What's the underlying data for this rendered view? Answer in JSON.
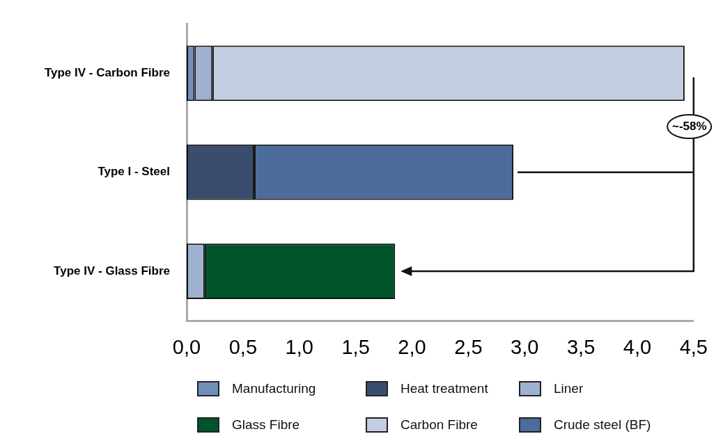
{
  "chart_data": {
    "type": "bar",
    "orientation": "horizontal",
    "stacked": true,
    "categories": [
      "Type IV - Carbon Fibre",
      "Type I - Steel",
      "Type IV - Glass Fibre"
    ],
    "series": [
      {
        "name": "Manufacturing",
        "color": "#7090bb",
        "values": [
          0.07,
          null,
          null
        ]
      },
      {
        "name": "Heat treatment",
        "color": "#3a4d6e",
        "values": [
          null,
          0.6,
          null
        ]
      },
      {
        "name": "Liner",
        "color": "#9fb1d0",
        "values": [
          0.16,
          null,
          0.16
        ]
      },
      {
        "name": "Glass Fibre",
        "color": "#00542a",
        "values": [
          null,
          null,
          1.69
        ]
      },
      {
        "name": "Carbon Fibre",
        "color": "#c3cee0",
        "values": [
          4.19,
          null,
          null
        ]
      },
      {
        "name": "Crude steel (BF)",
        "color": "#4c6c9b",
        "values": [
          null,
          2.3,
          null
        ]
      }
    ],
    "xlim": [
      0,
      4.5
    ],
    "xticks": [
      {
        "value": 0,
        "label": "0,0"
      },
      {
        "value": 0.5,
        "label": "0,5"
      },
      {
        "value": 1,
        "label": "1,0"
      },
      {
        "value": 1.5,
        "label": "1,5"
      },
      {
        "value": 2,
        "label": "2,0"
      },
      {
        "value": 2.5,
        "label": "2,5"
      },
      {
        "value": 3,
        "label": "3,0"
      },
      {
        "value": 3.5,
        "label": "3,5"
      },
      {
        "value": 4,
        "label": "4,0"
      },
      {
        "value": 4.5,
        "label": "4,5"
      }
    ],
    "annotations": [
      "~-58%"
    ],
    "grid": false,
    "legend": "bottom"
  }
}
